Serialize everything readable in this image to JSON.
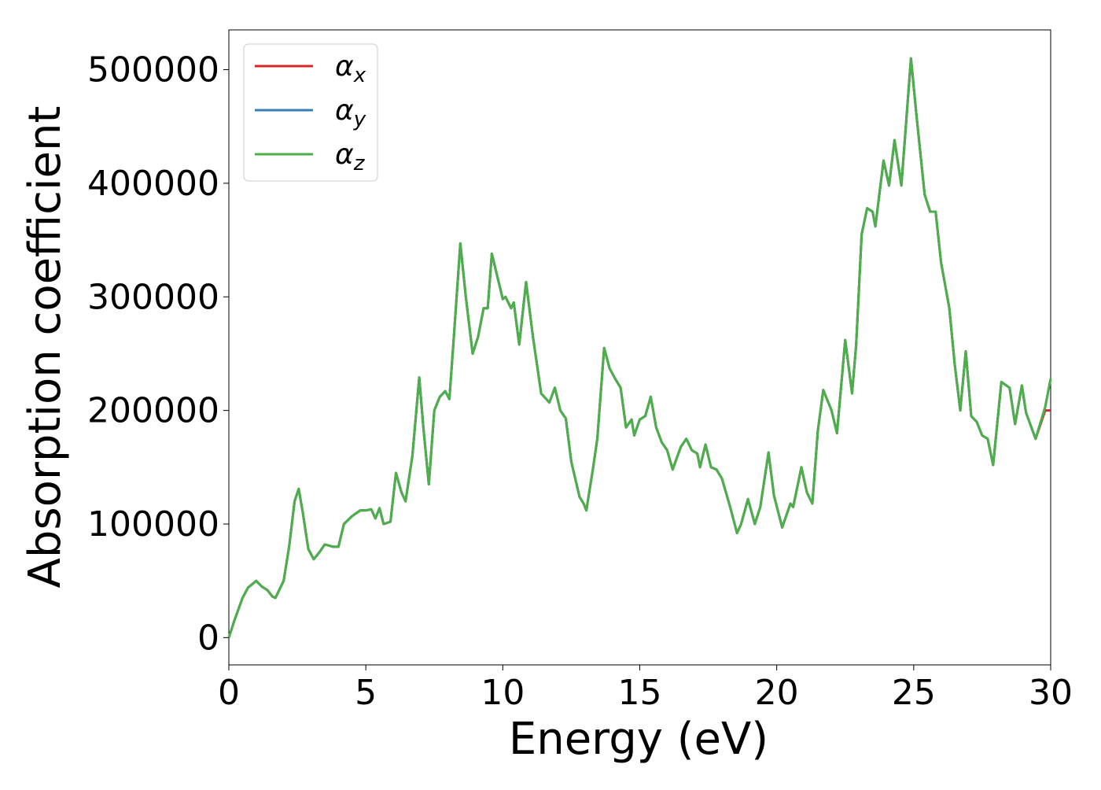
{
  "chart_data": {
    "type": "line",
    "x_label": "Energy (eV)",
    "y_label": "Absorption coefficient",
    "x": [
      0,
      0.2,
      0.5,
      0.7,
      1.0,
      1.2,
      1.4,
      1.6,
      1.7,
      2.0,
      2.2,
      2.4,
      2.55,
      2.7,
      2.9,
      3.1,
      3.3,
      3.5,
      3.8,
      4.0,
      4.2,
      4.5,
      4.8,
      5.0,
      5.2,
      5.35,
      5.5,
      5.65,
      5.9,
      6.1,
      6.3,
      6.45,
      6.7,
      6.95,
      7.1,
      7.3,
      7.5,
      7.7,
      7.9,
      8.05,
      8.2,
      8.45,
      8.65,
      8.9,
      9.1,
      9.3,
      9.45,
      9.6,
      9.8,
      10.0,
      10.1,
      10.3,
      10.4,
      10.6,
      10.85,
      11.1,
      11.4,
      11.7,
      11.9,
      12.1,
      12.3,
      12.5,
      12.8,
      12.95,
      13.05,
      13.3,
      13.45,
      13.7,
      13.9,
      14.1,
      14.3,
      14.5,
      14.7,
      14.8,
      15.0,
      15.2,
      15.4,
      15.6,
      15.8,
      16.0,
      16.2,
      16.5,
      16.7,
      16.9,
      17.1,
      17.2,
      17.4,
      17.6,
      17.8,
      18.0,
      18.3,
      18.55,
      18.7,
      18.95,
      19.2,
      19.4,
      19.7,
      19.9,
      20.2,
      20.5,
      20.6,
      20.9,
      21.1,
      21.3,
      21.5,
      21.7,
      22.0,
      22.2,
      22.5,
      22.75,
      22.9,
      23.1,
      23.3,
      23.5,
      23.6,
      23.9,
      24.1,
      24.3,
      24.55,
      24.9,
      25.1,
      25.4,
      25.6,
      25.8,
      26.0,
      26.3,
      26.5,
      26.7,
      26.9,
      27.1,
      27.3,
      27.5,
      27.7,
      27.9,
      28.2,
      28.5,
      28.7,
      28.95,
      29.1,
      29.45,
      29.8,
      30.0
    ],
    "series": [
      {
        "name": "αx",
        "color": "#d62728",
        "values": [
          0,
          15000,
          35000,
          44000,
          50000,
          45000,
          42000,
          36000,
          35000,
          50000,
          80000,
          120000,
          131000,
          110000,
          78000,
          69000,
          75000,
          82000,
          80000,
          80000,
          100000,
          107000,
          112000,
          112000,
          113000,
          105000,
          114000,
          100000,
          102000,
          145000,
          128000,
          120000,
          160000,
          229000,
          185000,
          135000,
          200000,
          212000,
          217000,
          210000,
          260000,
          347000,
          300000,
          250000,
          265000,
          290000,
          290000,
          338000,
          318000,
          298000,
          300000,
          290000,
          295000,
          258000,
          313000,
          265000,
          215000,
          207000,
          220000,
          200000,
          193000,
          155000,
          124000,
          118000,
          112000,
          150000,
          175000,
          255000,
          237000,
          228000,
          220000,
          185000,
          192000,
          178000,
          192000,
          195000,
          212000,
          185000,
          172000,
          165000,
          148000,
          168000,
          175000,
          165000,
          162000,
          150000,
          170000,
          150000,
          148000,
          140000,
          115000,
          92000,
          100000,
          122000,
          100000,
          115000,
          163000,
          125000,
          97000,
          118000,
          115000,
          150000,
          128000,
          118000,
          182000,
          218000,
          200000,
          180000,
          262000,
          215000,
          258000,
          355000,
          378000,
          375000,
          362000,
          420000,
          398000,
          438000,
          398000,
          510000,
          460000,
          390000,
          375000,
          375000,
          330000,
          290000,
          240000,
          200000,
          252000,
          195000,
          190000,
          178000,
          175000,
          152000,
          225000,
          220000,
          188000,
          222000,
          198000,
          175000,
          200000,
          200000
        ]
      },
      {
        "name": "αy",
        "color": "#377eb8",
        "values": [
          0,
          15000,
          35000,
          44000,
          50000,
          45000,
          42000,
          36000,
          35000,
          50000,
          80000,
          120000,
          131000,
          110000,
          78000,
          69000,
          75000,
          82000,
          80000,
          80000,
          100000,
          107000,
          112000,
          112000,
          113000,
          105000,
          114000,
          100000,
          102000,
          145000,
          128000,
          120000,
          160000,
          229000,
          185000,
          135000,
          200000,
          212000,
          217000,
          210000,
          260000,
          347000,
          300000,
          250000,
          265000,
          290000,
          290000,
          338000,
          318000,
          298000,
          300000,
          290000,
          295000,
          258000,
          313000,
          265000,
          215000,
          207000,
          220000,
          200000,
          193000,
          155000,
          124000,
          118000,
          112000,
          150000,
          175000,
          255000,
          237000,
          228000,
          220000,
          185000,
          192000,
          178000,
          192000,
          195000,
          212000,
          185000,
          172000,
          165000,
          148000,
          168000,
          175000,
          165000,
          162000,
          150000,
          170000,
          150000,
          148000,
          140000,
          115000,
          92000,
          100000,
          122000,
          100000,
          115000,
          163000,
          125000,
          97000,
          118000,
          115000,
          150000,
          128000,
          118000,
          182000,
          218000,
          200000,
          180000,
          262000,
          215000,
          258000,
          355000,
          378000,
          375000,
          362000,
          420000,
          398000,
          438000,
          398000,
          510000,
          460000,
          390000,
          375000,
          375000,
          330000,
          290000,
          240000,
          200000,
          252000,
          195000,
          190000,
          178000,
          175000,
          152000,
          225000,
          220000,
          188000,
          222000,
          198000,
          175000,
          203000,
          228000
        ]
      },
      {
        "name": "αz",
        "color": "#4daf4a",
        "values": [
          0,
          15000,
          35000,
          44000,
          50000,
          45000,
          42000,
          36000,
          35000,
          50000,
          80000,
          120000,
          131000,
          110000,
          78000,
          69000,
          75000,
          82000,
          80000,
          80000,
          100000,
          107000,
          112000,
          112000,
          113000,
          105000,
          114000,
          100000,
          102000,
          145000,
          128000,
          120000,
          160000,
          229000,
          185000,
          135000,
          200000,
          212000,
          217000,
          210000,
          260000,
          347000,
          300000,
          250000,
          265000,
          290000,
          290000,
          338000,
          318000,
          298000,
          300000,
          290000,
          295000,
          258000,
          313000,
          265000,
          215000,
          207000,
          220000,
          200000,
          193000,
          155000,
          124000,
          118000,
          112000,
          150000,
          175000,
          255000,
          237000,
          228000,
          220000,
          185000,
          192000,
          178000,
          192000,
          195000,
          212000,
          185000,
          172000,
          165000,
          148000,
          168000,
          175000,
          165000,
          162000,
          150000,
          170000,
          150000,
          148000,
          140000,
          115000,
          92000,
          100000,
          122000,
          100000,
          115000,
          163000,
          125000,
          97000,
          118000,
          115000,
          150000,
          128000,
          118000,
          182000,
          218000,
          200000,
          180000,
          262000,
          215000,
          258000,
          355000,
          378000,
          375000,
          362000,
          420000,
          398000,
          438000,
          398000,
          510000,
          460000,
          390000,
          375000,
          375000,
          330000,
          290000,
          240000,
          200000,
          252000,
          195000,
          190000,
          178000,
          175000,
          152000,
          225000,
          220000,
          188000,
          222000,
          198000,
          175000,
          203000,
          228000
        ]
      }
    ],
    "xlim": [
      0,
      30
    ],
    "xticks": [
      0,
      5,
      10,
      15,
      20,
      25,
      30
    ],
    "ylim": [
      -24000,
      535000
    ],
    "yticks": [
      0,
      100000,
      200000,
      300000,
      400000,
      500000
    ],
    "legend": "upper left",
    "grid": false
  }
}
